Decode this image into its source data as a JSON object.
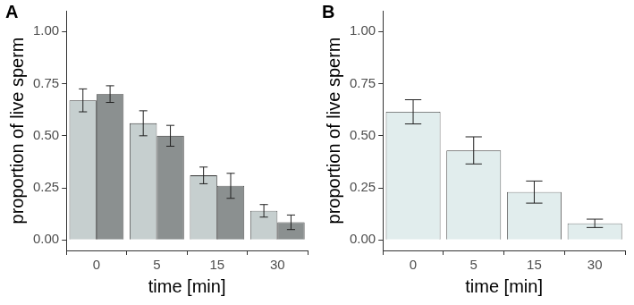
{
  "chart_data": [
    {
      "type": "bar",
      "title": "A",
      "xlabel": "time [min]",
      "ylabel": "proportion of live sperm",
      "categories": [
        "0",
        "5",
        "15",
        "30"
      ],
      "series": [
        {
          "color": "#c6cfcf",
          "values": [
            0.67,
            0.56,
            0.31,
            0.14
          ],
          "errors": [
            0.055,
            0.06,
            0.04,
            0.03
          ]
        },
        {
          "color": "#8b9090",
          "values": [
            0.7,
            0.5,
            0.26,
            0.085
          ],
          "errors": [
            0.04,
            0.05,
            0.06,
            0.035
          ]
        }
      ],
      "ylim": [
        -0.05,
        1.1
      ],
      "yticks": [
        {
          "value": 0,
          "label": "0.00"
        },
        {
          "value": 0.25,
          "label": "0.25"
        },
        {
          "value": 0.5,
          "label": "0.50"
        },
        {
          "value": 0.75,
          "label": "0.75"
        },
        {
          "value": 1,
          "label": "1.00"
        }
      ],
      "grid": false
    },
    {
      "type": "bar",
      "title": "B",
      "xlabel": "time [min]",
      "ylabel": "proportion of live sperm",
      "categories": [
        "0",
        "5",
        "15",
        "30"
      ],
      "series": [
        {
          "color": "#e1eded",
          "values": [
            0.615,
            0.43,
            0.23,
            0.08
          ],
          "errors": [
            0.058,
            0.065,
            0.053,
            0.02
          ]
        }
      ],
      "ylim": [
        -0.05,
        1.1
      ],
      "yticks": [
        {
          "value": 0,
          "label": "0.00"
        },
        {
          "value": 0.25,
          "label": "0.25"
        },
        {
          "value": 0.5,
          "label": "0.50"
        },
        {
          "value": 0.75,
          "label": "0.75"
        },
        {
          "value": 1,
          "label": "1.00"
        }
      ],
      "grid": false
    }
  ]
}
